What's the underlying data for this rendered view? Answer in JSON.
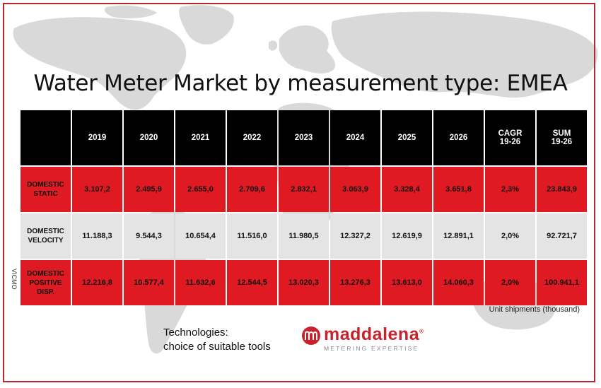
{
  "title": "Water Meter Market by measurement type: EMEA",
  "side_text": "VICMO",
  "unit_note": "Unit shipments (thousand)",
  "footer": {
    "technologies_line1": "Technologies:",
    "technologies_line2": "choice of suitable tools"
  },
  "brand": {
    "name": "maddalena",
    "registered_mark": "®",
    "tagline": "METERING EXPERTISE",
    "logo_icon": "maddalena-m-circle-icon",
    "color": "#c8232c"
  },
  "colors": {
    "header_bg": "#000000",
    "red_row": "#e01a22",
    "grey_row": "#e4e4e4",
    "frame": "#b5262f"
  },
  "chart_data": {
    "type": "table",
    "title": "Water Meter Market by measurement type: EMEA",
    "columns": [
      "2019",
      "2020",
      "2021",
      "2022",
      "2023",
      "2024",
      "2025",
      "2026",
      "CAGR 19-26",
      "SUM 19-26"
    ],
    "column_lines": [
      [
        "2019"
      ],
      [
        "2020"
      ],
      [
        "2021"
      ],
      [
        "2022"
      ],
      [
        "2023"
      ],
      [
        "2024"
      ],
      [
        "2025"
      ],
      [
        "2026"
      ],
      [
        "CAGR",
        "19-26"
      ],
      [
        "SUM",
        "19-26"
      ]
    ],
    "rows": [
      {
        "label": "DOMESTIC STATIC",
        "label_lines": [
          "DOMESTIC",
          "STATIC"
        ],
        "style": "red",
        "values": [
          "3.107,2",
          "2.495,9",
          "2.655,0",
          "2.709,6",
          "2.832,1",
          "3.063,9",
          "3.328,4",
          "3.651,8",
          "2,3%",
          "23.843,9"
        ]
      },
      {
        "label": "DOMESTIC VELOCITY",
        "label_lines": [
          "DOMESTIC",
          "VELOCITY"
        ],
        "style": "grey",
        "values": [
          "11.188,3",
          "9.544,3",
          "10.654,4",
          "11.516,0",
          "11.980,5",
          "12.327,2",
          "12.619,9",
          "12.891,1",
          "2,0%",
          "92.721,7"
        ]
      },
      {
        "label": "DOMESTIC POSITIVE DISP.",
        "label_lines": [
          "DOMESTIC",
          "POSITIVE",
          "DISP."
        ],
        "style": "red",
        "values": [
          "12.216,8",
          "10.577,4",
          "11.632,6",
          "12.544,5",
          "13.020,3",
          "13.276,3",
          "13.613,0",
          "14.060,3",
          "2,0%",
          "100.941,1"
        ]
      }
    ]
  }
}
